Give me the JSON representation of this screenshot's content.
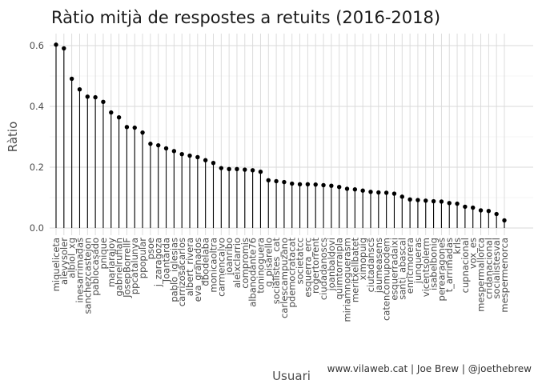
{
  "caption": "www.vilaweb.cat | Joe Brew | @joethebrew",
  "chart_data": {
    "type": "lollipop",
    "title": "Ràtio mitjà de respostes a retuits (2016-2018)",
    "xlabel": "Usuari",
    "ylabel": "Ràtio",
    "ylim": [
      0,
      0.62
    ],
    "yticks": [
      "0.0",
      "0.2",
      "0.4",
      "0.6"
    ],
    "ytick_values": [
      0,
      0.2,
      0.4,
      0.6
    ],
    "grid": true,
    "categories": [
      "miqueliceta",
      "alevysoler",
      "albiol_xg",
      "inesarrimadas",
      "sanchezcastejon",
      "pablocasado",
      "pnique",
      "mariarajoy",
      "gabrielrufian",
      "JosepBorrellF",
      "ppcatalunya",
      "ppopular",
      "psoe",
      "j_zaragoza",
      "Joantarda",
      "pablo_iglesias",
      "carrizosacarlos",
      "albert_rivera",
      "eva_granados",
      "dbodelaba",
      "monicaoltra",
      "carmencalvo",
      "joanribo",
      "aleixclarrio",
      "compromis",
      "albanodante76",
      "toninoguera",
      "g_pisarello",
      "socialistes_cat",
      "carlescampuzano",
      "pdemocratacat",
      "societatcc",
      "esquerra_erc",
      "rogertorrent",
      "ciudadanoscs",
      "joanbaldovi",
      "quimtorraipla",
      "miriamnoguerasm",
      "meritxellbatet",
      "ximopuig",
      "ciutadanscs",
      "jaumeasens",
      "catencomupodem",
      "esquerradaixi",
      "santi_abascal",
      "enricmorera",
      "junqueras",
      "vicentsolerm",
      "isabelbonig",
      "perearagones",
      "t_arrimadas",
      "krls",
      "cupnacional",
      "vox_es",
      "mespermallorca",
      "cridanacional",
      "socialistesval",
      "mespermenorca"
    ],
    "values": [
      0.603,
      0.591,
      0.491,
      0.456,
      0.432,
      0.43,
      0.415,
      0.38,
      0.364,
      0.332,
      0.33,
      0.314,
      0.277,
      0.272,
      0.262,
      0.253,
      0.243,
      0.238,
      0.233,
      0.223,
      0.214,
      0.197,
      0.194,
      0.194,
      0.192,
      0.19,
      0.185,
      0.157,
      0.154,
      0.151,
      0.146,
      0.144,
      0.144,
      0.143,
      0.141,
      0.139,
      0.135,
      0.129,
      0.127,
      0.123,
      0.119,
      0.117,
      0.116,
      0.113,
      0.103,
      0.094,
      0.092,
      0.09,
      0.088,
      0.087,
      0.082,
      0.08,
      0.07,
      0.067,
      0.058,
      0.056,
      0.046,
      0.025
    ]
  }
}
